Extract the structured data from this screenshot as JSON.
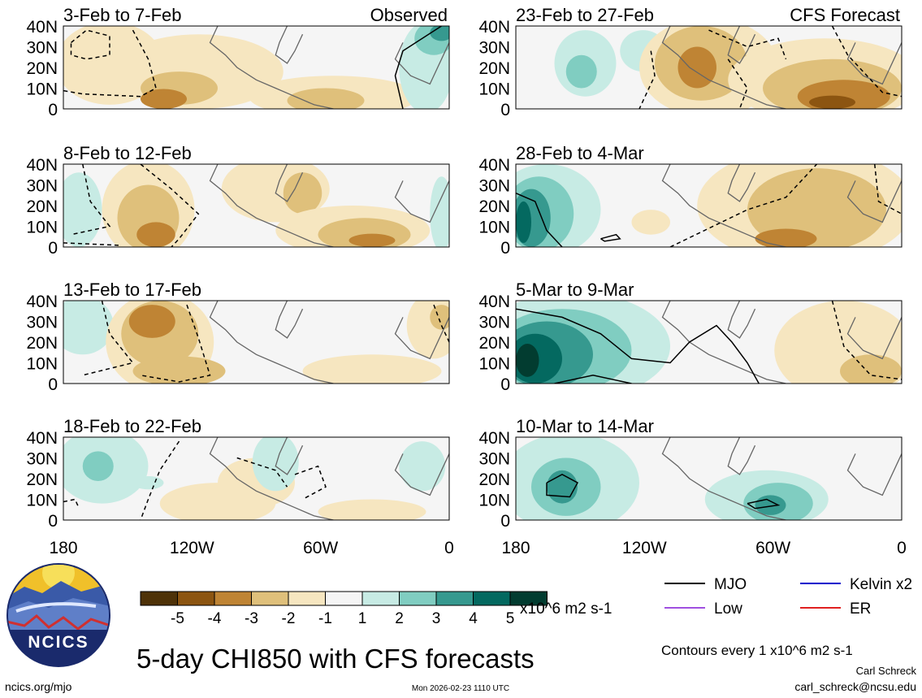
{
  "figure": {
    "title": "5-day CHI850 with CFS forecasts",
    "logo_text": "NCICS",
    "site": "ncics.org/mjo",
    "timestamp": "Mon 2026-02-23 1110 UTC",
    "author": "Carl Schreck",
    "email": "carl_schreck@ncsu.edu",
    "contour_note": "Contours every 1 x10^6 m2 s-1"
  },
  "chart_data": {
    "type": "heatmap",
    "variable": "CHI850 (velocity potential at 850 hPa)",
    "units": "x10^6 m2 s-1",
    "y_range": [
      0,
      40
    ],
    "y_ticks": [
      "40N",
      "30N",
      "20N",
      "10N",
      "0"
    ],
    "x_range": [
      -180,
      0
    ],
    "x_ticks": [
      "180",
      "120W",
      "60W",
      "0"
    ],
    "colorbar": {
      "levels": [
        "-5",
        "-4",
        "-3",
        "-2",
        "-1",
        "1",
        "2",
        "3",
        "4",
        "5"
      ],
      "colors": [
        "#4e3208",
        "#8c5511",
        "#bf8434",
        "#dfc07b",
        "#f6e6c0",
        "#f5f5f5",
        "#c7ebe4",
        "#80cdc1",
        "#36998f",
        "#046960",
        "#023c30"
      ],
      "units_label": "x10^6 m2 s-1"
    },
    "column_labels": {
      "left": "Observed",
      "right": "CFS Forecast"
    },
    "panels": [
      {
        "period": "3-Feb to 7-Feb",
        "column": "left",
        "source": "Observed"
      },
      {
        "period": "8-Feb to 12-Feb",
        "column": "left",
        "source": "Observed"
      },
      {
        "period": "13-Feb to 17-Feb",
        "column": "left",
        "source": "Observed"
      },
      {
        "period": "18-Feb to 22-Feb",
        "column": "left",
        "source": "Observed"
      },
      {
        "period": "23-Feb to 27-Feb",
        "column": "right",
        "source": "CFS Forecast"
      },
      {
        "period": "28-Feb to 4-Mar",
        "column": "right",
        "source": "CFS Forecast"
      },
      {
        "period": "5-Mar to 9-Mar",
        "column": "right",
        "source": "CFS Forecast"
      },
      {
        "period": "10-Mar to 14-Mar",
        "column": "right",
        "source": "CFS Forecast"
      }
    ],
    "legend": [
      {
        "label": "MJO",
        "color": "#000000",
        "placement": "left-top"
      },
      {
        "label": "Kelvin x2",
        "color": "#0000cc",
        "placement": "right-top"
      },
      {
        "label": "Low",
        "color": "#a050e0",
        "placement": "left-bottom"
      },
      {
        "label": "ER",
        "color": "#e02020",
        "placement": "right-bottom"
      }
    ]
  }
}
